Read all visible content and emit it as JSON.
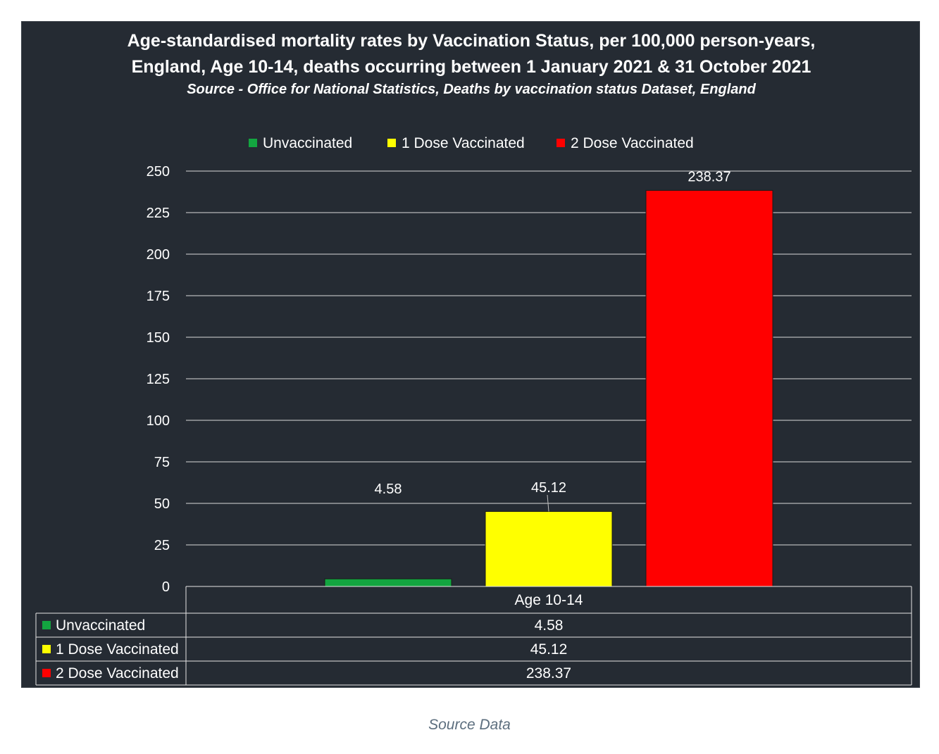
{
  "caption": "Source Data",
  "chart_data": {
    "type": "bar",
    "title_lines": [
      "Age-standardised mortality rates by Vaccination Status, per 100,000 person-years,",
      "England, Age 10-14, deaths occurring between 1 January 2021 & 31 October 2021"
    ],
    "subtitle": "Source - Office for National Statistics, Deaths by vaccination status Dataset, England",
    "categories": [
      "Age 10-14"
    ],
    "series": [
      {
        "name": "Unvaccinated",
        "values": [
          4.58
        ],
        "labels": [
          "4.58"
        ],
        "color": "#13a540"
      },
      {
        "name": "1 Dose Vaccinated",
        "values": [
          45.12
        ],
        "labels": [
          "45.12"
        ],
        "color": "#ffff00"
      },
      {
        "name": "2 Dose Vaccinated",
        "values": [
          238.37
        ],
        "labels": [
          "238.37"
        ],
        "color": "#ff0000"
      }
    ],
    "ylim": [
      0,
      250
    ],
    "yticks": [
      "0",
      "25",
      "50",
      "75",
      "100",
      "125",
      "150",
      "175",
      "200",
      "225",
      "250"
    ],
    "grid": true,
    "legend_position": "top",
    "data_table": true,
    "background": "#252b33",
    "text_color": "#ffffff"
  }
}
